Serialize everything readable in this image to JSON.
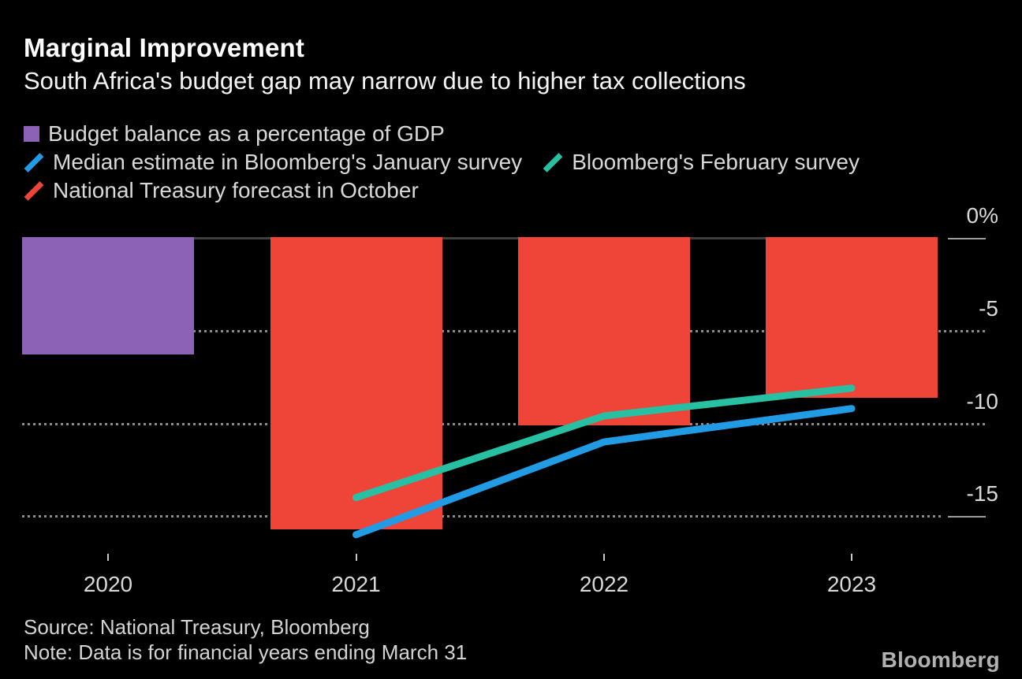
{
  "header": {
    "title": "Marginal Improvement",
    "subtitle": "South Africa's budget gap may narrow due to higher tax collections"
  },
  "legend": {
    "items": [
      {
        "label": "Budget balance as a percentage of GDP",
        "swatch": "square",
        "color": "#8c62b6"
      },
      {
        "label": "Median estimate in Bloomberg's January survey",
        "swatch": "slash",
        "color": "#219ce4"
      },
      {
        "label": "Bloomberg's February survey",
        "swatch": "slash",
        "color": "#28c0a2"
      },
      {
        "label": "National Treasury forecast in October",
        "swatch": "slash",
        "color": "#ef4539"
      }
    ]
  },
  "chart_data": {
    "type": "bar",
    "categories": [
      "2020",
      "2021",
      "2022",
      "2023"
    ],
    "series": [
      {
        "name": "Budget balance as a percentage of GDP",
        "type": "bar",
        "color": "#8c62b6",
        "values": [
          -6.3,
          null,
          null,
          null
        ]
      },
      {
        "name": "National Treasury forecast in October",
        "type": "bar",
        "color": "#ef4539",
        "values": [
          null,
          -15.7,
          -10.1,
          -8.6
        ]
      },
      {
        "name": "Median estimate in Bloomberg's January survey",
        "type": "line",
        "color": "#219ce4",
        "values": [
          null,
          -16.0,
          -11.0,
          -9.2
        ]
      },
      {
        "name": "Bloomberg's February survey",
        "type": "line",
        "color": "#28c0a2",
        "values": [
          null,
          -14.0,
          -9.6,
          -8.1
        ]
      }
    ],
    "title": "Marginal Improvement",
    "xlabel": "",
    "ylabel": "Budget balance as a percentage of GDP",
    "ylim": [
      -17.2,
      0
    ],
    "yticks": [
      {
        "value": 0,
        "label": "0%"
      },
      {
        "value": -5,
        "label": "-5"
      },
      {
        "value": -10,
        "label": "-10"
      },
      {
        "value": -15,
        "label": "-15"
      }
    ],
    "grid": "horizontal-dotted, legend top-left"
  },
  "footer": {
    "source": "Source: National Treasury, Bloomberg",
    "note": "Note: Data is for financial years ending March 31",
    "logo": "Bloomberg"
  }
}
